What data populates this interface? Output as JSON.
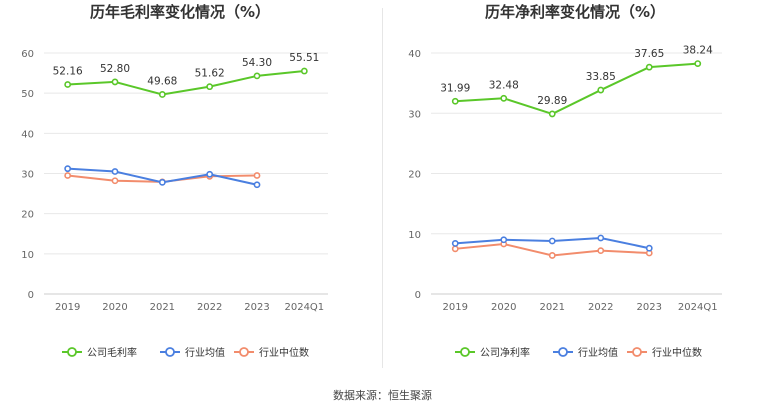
{
  "source": "数据来源：恒生聚源",
  "chart_data": [
    {
      "type": "line",
      "title": "历年毛利率变化情况（%）",
      "categories": [
        "2019",
        "2020",
        "2021",
        "2022",
        "2023",
        "2024Q1"
      ],
      "ylim": [
        0,
        60
      ],
      "yticks": [
        0,
        10,
        20,
        30,
        40,
        50,
        60
      ],
      "grid": true,
      "legend_position": "bottom",
      "series": [
        {
          "name": "公司毛利率",
          "color": "#5ac729",
          "values": [
            52.16,
            52.8,
            49.68,
            51.62,
            54.3,
            55.51
          ],
          "labels": [
            "52.16",
            "52.80",
            "49.68",
            "51.62",
            "54.30",
            "55.51"
          ]
        },
        {
          "name": "行业均值",
          "color": "#4a7fe0",
          "values": [
            31.2,
            30.5,
            27.8,
            29.8,
            27.2,
            null
          ]
        },
        {
          "name": "行业中位数",
          "color": "#f28c6c",
          "values": [
            29.5,
            28.2,
            27.9,
            29.3,
            29.5,
            null
          ]
        }
      ]
    },
    {
      "type": "line",
      "title": "历年净利率变化情况（%）",
      "categories": [
        "2019",
        "2020",
        "2021",
        "2022",
        "2023",
        "2024Q1"
      ],
      "ylim": [
        0,
        40
      ],
      "yticks": [
        0,
        10,
        20,
        30,
        40
      ],
      "grid": true,
      "legend_position": "bottom",
      "series": [
        {
          "name": "公司净利率",
          "color": "#5ac729",
          "values": [
            31.99,
            32.48,
            29.89,
            33.85,
            37.65,
            38.24
          ],
          "labels": [
            "31.99",
            "32.48",
            "29.89",
            "33.85",
            "37.65",
            "38.24"
          ]
        },
        {
          "name": "行业均值",
          "color": "#4a7fe0",
          "values": [
            8.4,
            9.0,
            8.8,
            9.3,
            7.6,
            null
          ]
        },
        {
          "name": "行业中位数",
          "color": "#f28c6c",
          "values": [
            7.5,
            8.3,
            6.4,
            7.2,
            6.8,
            null
          ]
        }
      ]
    }
  ]
}
